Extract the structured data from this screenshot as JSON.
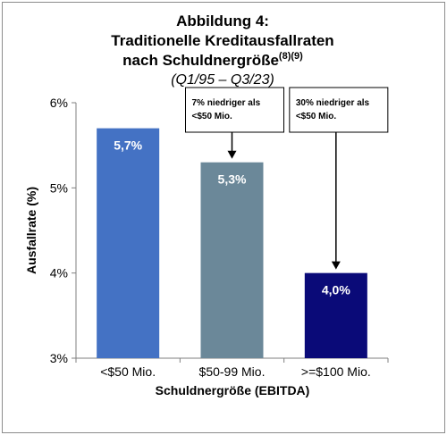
{
  "chart_data": {
    "type": "bar",
    "title_line1": "Abbildung 4:",
    "title_line2": "Traditionelle Kreditausfallraten",
    "title_line3": "nach Schuldnergröße",
    "title_superscript": "(8)(9)",
    "subtitle": "(Q1/95 – Q3/23)",
    "xlabel": "Schuldnergröße (EBITDA)",
    "ylabel": "Ausfallrate (%)",
    "categories": [
      "<$50 Mio.",
      "$50-99 Mio.",
      ">=$100 Mio."
    ],
    "values": [
      5.7,
      5.3,
      4.0
    ],
    "value_labels": [
      "5,7%",
      "5,3%",
      "4,0%"
    ],
    "bar_colors": [
      "#4472c4",
      "#6b8899",
      "#0a0a78"
    ],
    "ylim": [
      3,
      6
    ],
    "yticks": [
      3,
      4,
      5,
      6
    ],
    "ytick_labels": [
      "3%",
      "4%",
      "5%",
      "6%"
    ],
    "grid": false,
    "annotations": [
      {
        "category_index": 1,
        "line1": "7% niedriger als",
        "line2": "<$50 Mio."
      },
      {
        "category_index": 2,
        "line1": "30% niedriger als",
        "line2": "<$50 Mio."
      }
    ]
  }
}
